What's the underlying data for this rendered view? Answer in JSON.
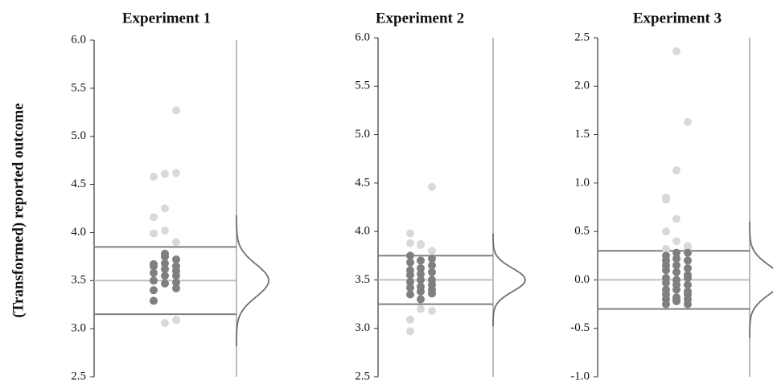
{
  "chart_data": [
    {
      "type": "strip",
      "title": "Experiment 1",
      "ylabel": "(Transformed) reported outcome",
      "ylim": [
        2.5,
        6
      ],
      "yticks": [
        {
          "value": 2.5,
          "label": "2.5"
        },
        {
          "value": 3,
          "label": "3.0"
        },
        {
          "value": 3.5,
          "label": "3.5"
        },
        {
          "value": 4,
          "label": "4.0"
        },
        {
          "value": 4.5,
          "label": "4.5"
        },
        {
          "value": 5,
          "label": "5.0"
        },
        {
          "value": 5.5,
          "label": "5.5"
        },
        {
          "value": 6,
          "label": "6.0"
        }
      ],
      "series": [
        {
          "color": "#d9d9d9",
          "values": [
            4.58,
            4.61,
            5.27,
            4.16,
            4.25,
            4.62,
            3.99,
            4.02,
            3.9,
            3.99,
            3.06,
            3.09
          ]
        },
        {
          "color": "#7f7f7f",
          "values": [
            3.67,
            3.78,
            3.72,
            3.65,
            3.75,
            3.65,
            3.58,
            3.68,
            3.6,
            3.5,
            3.62,
            3.55,
            3.4,
            3.55,
            3.48,
            3.29,
            3.47,
            3.42
          ]
        }
      ],
      "hlines": [
        {
          "value": 3.85,
          "color": "#7f7f7f"
        },
        {
          "value": 3.5,
          "color": "#bfbfbf"
        },
        {
          "value": 3.15,
          "color": "#7f7f7f"
        }
      ],
      "curve": {
        "mean": 3.5,
        "sd": 0.17
      }
    },
    {
      "type": "strip",
      "title": "Experiment 2",
      "ylim": [
        2.5,
        6
      ],
      "yticks": [
        {
          "value": 2.5,
          "label": "2.5"
        },
        {
          "value": 3,
          "label": "3.0"
        },
        {
          "value": 3.5,
          "label": "3.5"
        },
        {
          "value": 4,
          "label": "4.0"
        },
        {
          "value": 4.5,
          "label": "4.5"
        },
        {
          "value": 5,
          "label": "5.0"
        },
        {
          "value": 5.5,
          "label": "5.5"
        },
        {
          "value": 6,
          "label": "6.0"
        }
      ],
      "series": [
        {
          "color": "#d9d9d9",
          "values": [
            3.98,
            3.86,
            4.46,
            3.88,
            3.87,
            3.8,
            3.09,
            3.2,
            3.18,
            2.97
          ]
        },
        {
          "color": "#7f7f7f",
          "values": [
            3.75,
            3.7,
            3.72,
            3.68,
            3.62,
            3.65,
            3.6,
            3.56,
            3.58,
            3.55,
            3.5,
            3.5,
            3.48,
            3.43,
            3.45,
            3.42,
            3.38,
            3.4,
            3.35,
            3.3,
            3.36
          ]
        }
      ],
      "hlines": [
        {
          "value": 3.75,
          "color": "#7f7f7f"
        },
        {
          "value": 3.5,
          "color": "#bfbfbf"
        },
        {
          "value": 3.25,
          "color": "#7f7f7f"
        }
      ],
      "curve": {
        "mean": 3.5,
        "sd": 0.12
      }
    },
    {
      "type": "strip",
      "title": "Experiment 3",
      "ylim": [
        -1,
        2.5
      ],
      "yticks": [
        {
          "value": -1,
          "label": "-1.0"
        },
        {
          "value": -0.5,
          "label": "-0.5"
        },
        {
          "value": 0,
          "label": "0.0"
        },
        {
          "value": 0.5,
          "label": "0.5"
        },
        {
          "value": 1,
          "label": "1.0"
        },
        {
          "value": 1.5,
          "label": "1.5"
        },
        {
          "value": 2,
          "label": "2.0"
        },
        {
          "value": 2.5,
          "label": "2.5"
        }
      ],
      "series": [
        {
          "color": "#d9d9d9",
          "values": [
            0.85,
            2.36,
            1.63,
            0.5,
            1.13,
            0.32,
            0.83,
            0.63,
            0.35,
            0.32,
            0.4,
            0.3
          ]
        },
        {
          "color": "#7f7f7f",
          "values": [
            0.25,
            0.28,
            0.28,
            0.2,
            0.22,
            0.2,
            0.15,
            0.15,
            0.12,
            0.1,
            0.08,
            0.05,
            0.02,
            0.0,
            0.02,
            -0.03,
            -0.05,
            -0.05,
            -0.1,
            -0.1,
            -0.12,
            -0.15,
            -0.18,
            -0.15,
            -0.2,
            -0.22,
            -0.2,
            -0.25,
            -0.2,
            -0.25
          ]
        }
      ],
      "hlines": [
        {
          "value": 0.3,
          "color": "#7f7f7f"
        },
        {
          "value": 0,
          "color": "#bfbfbf"
        },
        {
          "value": -0.3,
          "color": "#7f7f7f"
        }
      ],
      "curve": {
        "mean": 0,
        "sd": 0.15
      }
    }
  ]
}
